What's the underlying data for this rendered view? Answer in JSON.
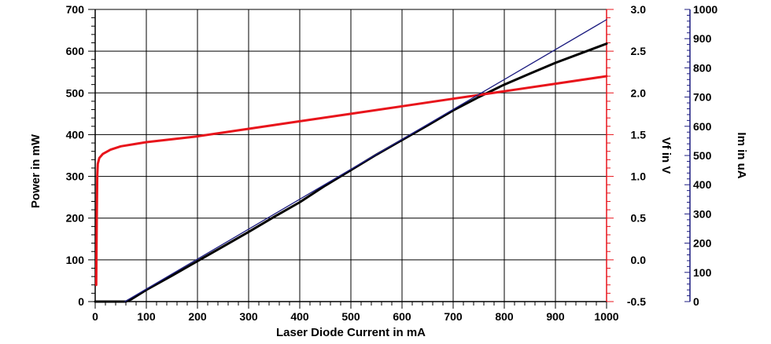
{
  "chart_data": {
    "type": "line",
    "title": "",
    "xlabel": "Laser Diode Current in mA",
    "xlim": [
      0,
      1000
    ],
    "x_ticks": [
      0,
      100,
      200,
      300,
      400,
      500,
      600,
      700,
      800,
      900,
      1000
    ],
    "grid": true,
    "legend": "none",
    "axes": {
      "power": {
        "label": "Power  in mW",
        "side": "left",
        "range": [
          0,
          700
        ],
        "ticks": [
          0,
          100,
          200,
          300,
          400,
          500,
          600,
          700
        ],
        "color": "#000000"
      },
      "vf": {
        "label": "Vf in V",
        "side": "right",
        "range": [
          -0.5,
          3.0
        ],
        "ticks": [
          "-0.5",
          "0.0",
          "0.5",
          "1.0",
          "1.5",
          "2.0",
          "2.5",
          "3.0"
        ],
        "color": "#e8141b"
      },
      "im": {
        "label": "Im in uA",
        "side": "right-outer",
        "range": [
          0,
          1000
        ],
        "ticks": [
          0,
          100,
          200,
          300,
          400,
          500,
          600,
          700,
          800,
          900,
          1000
        ],
        "color": "#1c1c80"
      }
    },
    "series": [
      {
        "axis": "power",
        "color": "#000000",
        "points": [
          [
            0,
            0
          ],
          [
            55,
            0
          ],
          [
            60,
            0
          ],
          [
            70,
            5
          ],
          [
            100,
            28
          ],
          [
            150,
            62
          ],
          [
            200,
            97
          ],
          [
            250,
            132
          ],
          [
            300,
            167
          ],
          [
            350,
            203
          ],
          [
            400,
            238
          ],
          [
            450,
            278
          ],
          [
            500,
            315
          ],
          [
            550,
            352
          ],
          [
            600,
            387
          ],
          [
            650,
            422
          ],
          [
            700,
            458
          ],
          [
            750,
            490
          ],
          [
            800,
            520
          ],
          [
            850,
            546
          ],
          [
            900,
            572
          ],
          [
            950,
            595
          ],
          [
            1000,
            618
          ]
        ]
      },
      {
        "axis": "vf",
        "color": "#e8141b",
        "points": [
          [
            2,
            -0.3
          ],
          [
            3,
            0.5
          ],
          [
            4,
            1.0
          ],
          [
            5,
            1.15
          ],
          [
            8,
            1.22
          ],
          [
            15,
            1.27
          ],
          [
            30,
            1.32
          ],
          [
            50,
            1.36
          ],
          [
            80,
            1.39
          ],
          [
            100,
            1.41
          ],
          [
            200,
            1.48
          ],
          [
            300,
            1.57
          ],
          [
            400,
            1.66
          ],
          [
            500,
            1.75
          ],
          [
            600,
            1.84
          ],
          [
            700,
            1.93
          ],
          [
            800,
            2.02
          ],
          [
            900,
            2.11
          ],
          [
            1000,
            2.2
          ]
        ]
      },
      {
        "axis": "im",
        "color": "#1c1c80",
        "points": [
          [
            58,
            0
          ],
          [
            1000,
            965
          ]
        ]
      }
    ]
  }
}
